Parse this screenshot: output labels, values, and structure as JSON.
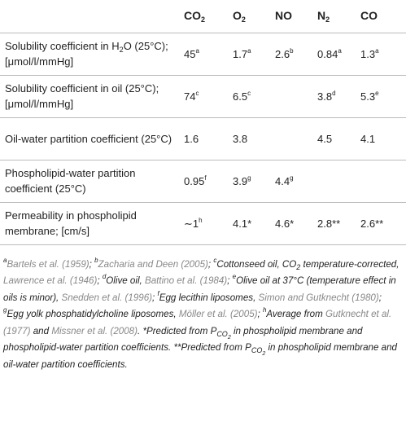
{
  "table": {
    "header": [
      {
        "text": "CO",
        "sub": "2"
      },
      {
        "text": "O",
        "sub": "2"
      },
      {
        "text": "NO"
      },
      {
        "text": "N",
        "sub": "2"
      },
      {
        "text": "CO"
      }
    ],
    "rows": [
      {
        "label": [
          {
            "text": "Solubility coefficient in H"
          },
          {
            "text": "2",
            "s": "sub"
          },
          {
            "text": "O (25°C); [μmol/l/mmHg]"
          }
        ],
        "cells": [
          {
            "value": "45",
            "note": "a"
          },
          {
            "value": "1.7",
            "note": "a"
          },
          {
            "value": "2.6",
            "note": "b"
          },
          {
            "value": "0.84",
            "note": "a"
          },
          {
            "value": "1.3",
            "note": "a"
          }
        ]
      },
      {
        "label": [
          {
            "text": "Solubility coefficient in oil (25°C); [μmol/l/mmHg]"
          }
        ],
        "cells": [
          {
            "value": "74",
            "note": "c"
          },
          {
            "value": "6.5",
            "note": "c"
          },
          null,
          {
            "value": "3.8",
            "note": "d"
          },
          {
            "value": "5.3",
            "note": "e"
          }
        ]
      },
      {
        "label": [
          {
            "text": "Oil-water partition coefficient (25°C)"
          }
        ],
        "cells": [
          {
            "value": "1.6"
          },
          {
            "value": "3.8"
          },
          null,
          {
            "value": "4.5"
          },
          {
            "value": "4.1"
          }
        ]
      },
      {
        "label": [
          {
            "text": "Phospholipid-water partition coefficient (25°C)"
          }
        ],
        "cells": [
          {
            "value": "0.95",
            "note": "f"
          },
          {
            "value": "3.9",
            "note": "g"
          },
          {
            "value": "4.4",
            "note": "g"
          },
          null,
          null
        ]
      },
      {
        "label": [
          {
            "text": "Permeability in phospholipid membrane; [cm/s]"
          }
        ],
        "cells": [
          {
            "value": "∼1",
            "note": "h"
          },
          {
            "value": "4.1*"
          },
          {
            "value": "4.6*"
          },
          {
            "value": "2.8**"
          },
          {
            "value": "2.6**"
          }
        ]
      }
    ]
  },
  "footnotes": [
    {
      "text": "a",
      "s": "sup"
    },
    {
      "text": "Bartels et al. (1959)",
      "s": "cite"
    },
    {
      "text": "; "
    },
    {
      "text": "b",
      "s": "sup"
    },
    {
      "text": "Zacharia and Deen (2005)",
      "s": "cite"
    },
    {
      "text": "; "
    },
    {
      "text": "c",
      "s": "sup"
    },
    {
      "text": "Cottonseed oil, CO"
    },
    {
      "text": "2",
      "s": "sub"
    },
    {
      "text": " temperature-corrected, "
    },
    {
      "text": "Lawrence et al. (1946)",
      "s": "cite"
    },
    {
      "text": "; "
    },
    {
      "text": "d",
      "s": "sup"
    },
    {
      "text": "Olive oil, "
    },
    {
      "text": "Battino et al. (1984)",
      "s": "cite"
    },
    {
      "text": "; "
    },
    {
      "text": "e",
      "s": "sup"
    },
    {
      "text": "Olive oil at 37°C (temperature effect in oils is minor), "
    },
    {
      "text": "Snedden et al. (1996)",
      "s": "cite"
    },
    {
      "text": "; "
    },
    {
      "text": "f",
      "s": "sup"
    },
    {
      "text": "Egg lecithin liposomes, "
    },
    {
      "text": "Simon and Gutknecht (1980)",
      "s": "cite"
    },
    {
      "text": "; "
    },
    {
      "text": "g",
      "s": "sup"
    },
    {
      "text": "Egg yolk phosphatidylcholine liposomes, "
    },
    {
      "text": "Möller et al. (2005)",
      "s": "cite"
    },
    {
      "text": "; "
    },
    {
      "text": "h",
      "s": "sup"
    },
    {
      "text": "Average from "
    },
    {
      "text": "Gutknecht et al. (1977)",
      "s": "cite"
    },
    {
      "text": " and "
    },
    {
      "text": "Missner et al. (2008)",
      "s": "cite"
    },
    {
      "text": ". "
    },
    {
      "text": "*Predicted from P"
    },
    {
      "text": "CO",
      "s": "sub"
    },
    {
      "text": "2",
      "s": "subsub"
    },
    {
      "text": " in phospholipid membrane and phospholipid-water partition coefficients. "
    },
    {
      "text": "**Predicted from P"
    },
    {
      "text": "CO",
      "s": "sub"
    },
    {
      "text": "2",
      "s": "subsub"
    },
    {
      "text": " in phospholipid membrane and oil-water partition coefficients."
    }
  ]
}
